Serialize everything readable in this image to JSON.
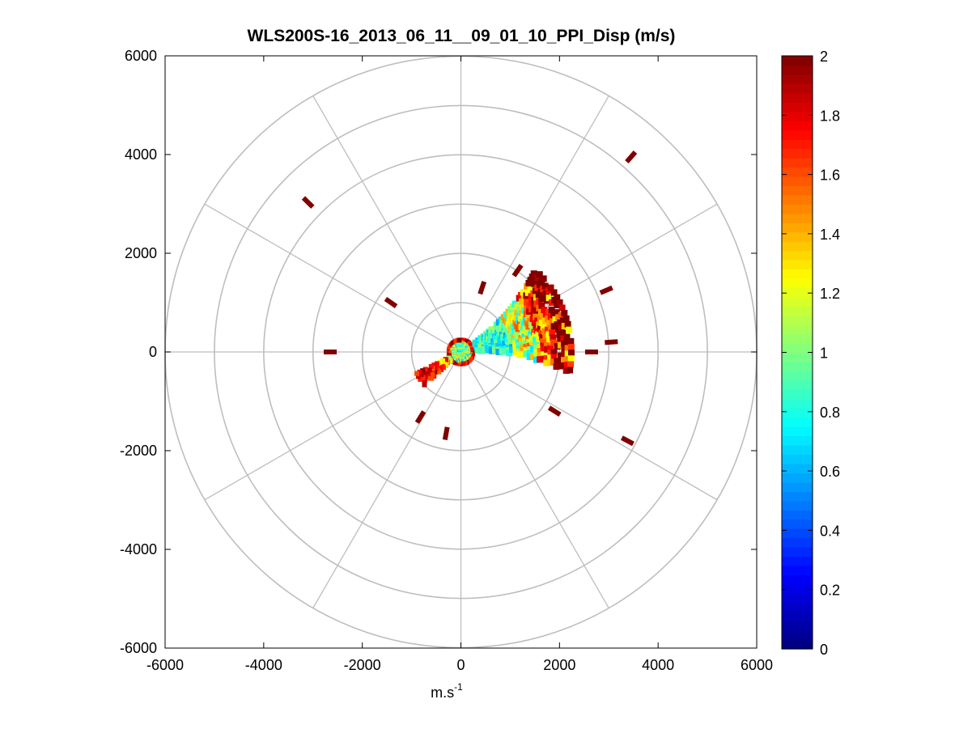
{
  "chart_data": {
    "type": "heatmap",
    "subtype": "polar-ppi",
    "title": "WLS200S-16_2013_06_11__09_01_10_PPI_Disp (m/s)",
    "xlabel": "m.s",
    "xlabel_sup": "-1",
    "ylabel": "",
    "xlim": [
      -6000,
      6000
    ],
    "ylim": [
      -6000,
      6000
    ],
    "xticks": [
      "-6000",
      "-4000",
      "-2000",
      "0",
      "2000",
      "4000",
      "6000"
    ],
    "yticks": [
      "6000",
      "4000",
      "2000",
      "0",
      "-2000",
      "-4000",
      "-6000"
    ],
    "grid": true,
    "polar_grid": {
      "ring_radii": [
        1000,
        2000,
        3000,
        4000,
        5000,
        6000
      ],
      "spoke_angles_deg": [
        0,
        30,
        60,
        90,
        120,
        150,
        180,
        210,
        240,
        270,
        300,
        330
      ]
    },
    "colorbar": {
      "colormap": "jet",
      "range": [
        0,
        2
      ],
      "tick_labels": [
        "0",
        "0.2",
        "0.4",
        "0.6",
        "0.8",
        "1",
        "1.2",
        "1.4",
        "1.6",
        "1.8",
        "2"
      ],
      "ticks": [
        0,
        0.2,
        0.4,
        0.6,
        0.8,
        1.0,
        1.2,
        1.4,
        1.6,
        1.8,
        2.0
      ]
    },
    "isolated_returns": [
      {
        "x": 3450,
        "y": 3950,
        "v": 2.0
      },
      {
        "x": -3100,
        "y": 3030,
        "v": 2.0
      },
      {
        "x": -2650,
        "y": 0,
        "v": 2.0
      },
      {
        "x": 3380,
        "y": -1800,
        "v": 2.0
      },
      {
        "x": 2650,
        "y": 0,
        "v": 2.0
      },
      {
        "x": 1900,
        "y": -1200,
        "v": 2.0
      },
      {
        "x": -1420,
        "y": 1000,
        "v": 2.0
      },
      {
        "x": 430,
        "y": 1300,
        "v": 2.0
      },
      {
        "x": -300,
        "y": -1650,
        "v": 2.0
      },
      {
        "x": -820,
        "y": -1320,
        "v": 2.0
      },
      {
        "x": 1150,
        "y": 1650,
        "v": 2.0
      },
      {
        "x": 2950,
        "y": 1250,
        "v": 2.0
      },
      {
        "x": 3050,
        "y": 200,
        "v": 2.0
      }
    ]
  }
}
